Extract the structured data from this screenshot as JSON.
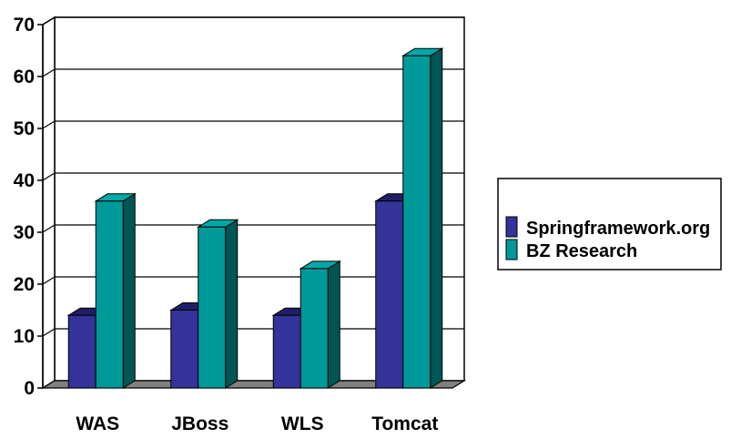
{
  "chart_data": {
    "type": "bar",
    "style": "3d-clustered",
    "categories": [
      "WAS",
      "JBoss",
      "WLS",
      "Tomcat"
    ],
    "series": [
      {
        "name": "Springframework.org",
        "values": [
          14,
          15,
          14,
          36
        ],
        "color": "#333399",
        "top_color": "#1f1f66",
        "side_color": "#16164d"
      },
      {
        "name": "BZ Research",
        "values": [
          36,
          31,
          23,
          64
        ],
        "color": "#009999",
        "top_color": "#00a8a8",
        "side_color": "#005555"
      }
    ],
    "ylim": [
      0,
      70
    ],
    "yticks": [
      "0",
      "10",
      "20",
      "30",
      "40",
      "50",
      "60",
      "70"
    ],
    "grid": true,
    "legend_position": "right",
    "title": "",
    "xlabel": "",
    "ylabel": "",
    "floor_color": "#808080"
  }
}
